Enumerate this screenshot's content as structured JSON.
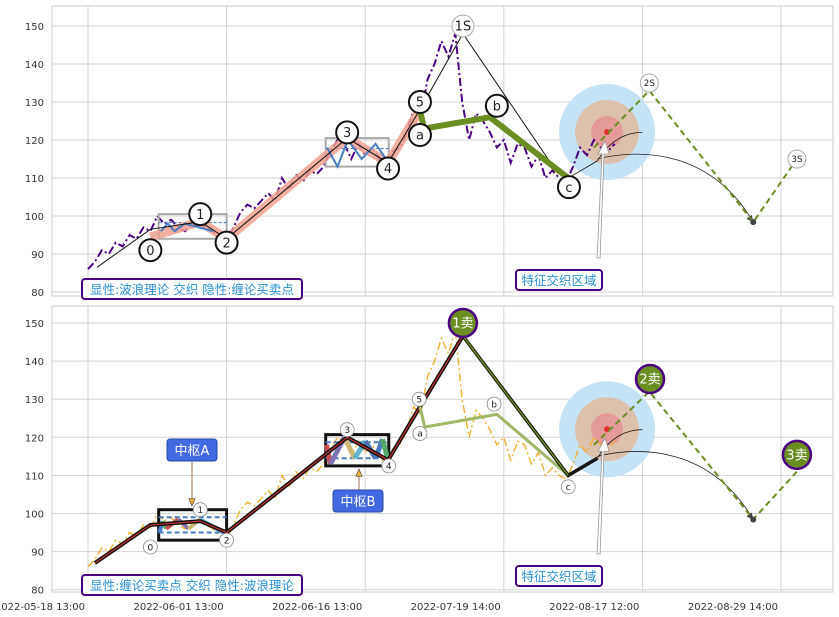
{
  "chart_data": {
    "type": "line",
    "title": "",
    "ylim": [
      79,
      155
    ],
    "y_ticks": [
      80,
      90,
      100,
      110,
      120,
      130,
      140,
      150
    ],
    "x_ticks": [
      {
        "idx": 0,
        "label": "2022-05-18 13:00"
      },
      {
        "idx": 20,
        "label": "2022-06-01 13:00"
      },
      {
        "idx": 40,
        "label": "2022-06-16 13:00"
      },
      {
        "idx": 60,
        "label": "2022-07-19 14:00"
      },
      {
        "idx": 80,
        "label": "2022-08-17 12:00"
      },
      {
        "idx": 100,
        "label": "2022-08-29 14:00"
      }
    ],
    "price": [
      86,
      88,
      91,
      90,
      93,
      92,
      95,
      94,
      97,
      96,
      100,
      98,
      99,
      97,
      96,
      98,
      98,
      97,
      96,
      94,
      93,
      97,
      101,
      103,
      102,
      104,
      106,
      104,
      110,
      107,
      111,
      109,
      112,
      111,
      113,
      117,
      120,
      119,
      115,
      119,
      116,
      118,
      115,
      113,
      117,
      118,
      122,
      128,
      126,
      136,
      140,
      146,
      142,
      148,
      130,
      120,
      127,
      125,
      122,
      118,
      120,
      114,
      119,
      118,
      113,
      116,
      110,
      112,
      110,
      109,
      113,
      118,
      116,
      120,
      118,
      117,
      119
    ],
    "colors": {
      "top_price": "#4b0082",
      "bottom_price": "#f0b030",
      "wave_band": "#f0a090",
      "abc_green": "#6b8e23",
      "sell_green": "#6b8e23",
      "box_label": "#4169e1",
      "purple_border": "#4b0082",
      "note_text": "#2a8fd0"
    },
    "panels": [
      {
        "name": "top",
        "note": "显性:波浪理论 交织 隐性:缠论买卖点",
        "zone_label": "特征交织区域",
        "wave_band": [
          [
            9,
            94.5
          ],
          [
            16.2,
            98.5
          ],
          [
            20,
            94
          ],
          [
            37.4,
            120.5
          ],
          [
            43.3,
            114
          ],
          [
            47.9,
            128
          ]
        ],
        "thin_line": [
          [
            1.3,
            86.5
          ],
          [
            9,
            96.5
          ],
          [
            16.2,
            98.5
          ],
          [
            20,
            94
          ],
          [
            37.4,
            120.5
          ],
          [
            43.3,
            114
          ],
          [
            47.9,
            128
          ],
          [
            54.1,
            148
          ],
          [
            67.5,
            112
          ]
        ],
        "abc_line": [
          [
            47.9,
            128
          ],
          [
            48.5,
            123
          ],
          [
            58,
            126
          ],
          [
            69.3,
            110
          ]
        ],
        "boxes": [
          {
            "x": [
              10.2,
              20
            ],
            "y": [
              94,
              100.5
            ]
          },
          {
            "x": [
              34.3,
              43.4
            ],
            "y": [
              113,
              120.5
            ]
          }
        ],
        "labels": [
          {
            "t": "0",
            "x": 9,
            "y": 91
          },
          {
            "t": "1",
            "x": 16.2,
            "y": 100.5
          },
          {
            "t": "2",
            "x": 20,
            "y": 93
          },
          {
            "t": "3",
            "x": 37.4,
            "y": 122
          },
          {
            "t": "4",
            "x": 43.3,
            "y": 112.5
          },
          {
            "t": "5",
            "x": 47.9,
            "y": 130
          },
          {
            "t": "a",
            "x": 47.9,
            "y": 121.3
          },
          {
            "t": "b",
            "x": 59,
            "y": 129
          },
          {
            "t": "c",
            "x": 69.4,
            "y": 107.6
          }
        ],
        "sell_labels": [
          {
            "t": "1S",
            "x": 54.1,
            "y": 150
          },
          {
            "t": "2S",
            "x": 81,
            "y": 135
          },
          {
            "t": "3S",
            "x": 102.3,
            "y": 115
          }
        ],
        "dashed": [
          [
            73,
            118
          ],
          [
            81,
            133
          ],
          [
            96,
            98.4
          ],
          [
            102.3,
            115
          ]
        ]
      },
      {
        "name": "bottom",
        "note": "显性:缠论买卖点 交织 隐性:波浪理论",
        "zone_label": "特征交织区域",
        "main_line": [
          [
            1,
            87
          ],
          [
            9,
            97
          ],
          [
            16.2,
            98
          ],
          [
            20,
            95
          ],
          [
            37.4,
            120
          ],
          [
            43.3,
            114
          ],
          [
            47.9,
            128
          ],
          [
            54.1,
            146.6
          ]
        ],
        "down_line": [
          [
            54.1,
            146.6
          ],
          [
            69.3,
            110
          ],
          [
            73.5,
            114.5
          ]
        ],
        "abc_line": [
          [
            47.9,
            128
          ],
          [
            48.6,
            122.7
          ],
          [
            59,
            126
          ],
          [
            69.3,
            110
          ]
        ],
        "boxes": [
          {
            "label": "中枢A",
            "x": [
              10.2,
              20
            ],
            "y": [
              93,
              101
            ]
          },
          {
            "label": "中枢B",
            "x": [
              34.3,
              43.4
            ],
            "y": [
              112.5,
              120.7
            ]
          }
        ],
        "labels": [
          {
            "t": "0",
            "x": 9,
            "y": 91.2
          },
          {
            "t": "1",
            "x": 16.2,
            "y": 101
          },
          {
            "t": "2",
            "x": 20,
            "y": 93
          },
          {
            "t": "3",
            "x": 37.4,
            "y": 122
          },
          {
            "t": "4",
            "x": 43.4,
            "y": 112.5
          },
          {
            "t": "5",
            "x": 47.8,
            "y": 130
          },
          {
            "t": "a",
            "x": 47.9,
            "y": 121
          },
          {
            "t": "b",
            "x": 58.6,
            "y": 128.7
          },
          {
            "t": "c",
            "x": 69.3,
            "y": 107
          }
        ],
        "sell_labels": [
          {
            "t": "1卖",
            "x": 54.1,
            "y": 150
          },
          {
            "t": "2卖",
            "x": 81.1,
            "y": 135.3
          },
          {
            "t": "3卖",
            "x": 102.3,
            "y": 115.4
          }
        ],
        "dashed": [
          [
            73,
            118
          ],
          [
            81,
            132
          ],
          [
            96,
            98.5
          ],
          [
            102.3,
            111
          ]
        ]
      }
    ]
  }
}
